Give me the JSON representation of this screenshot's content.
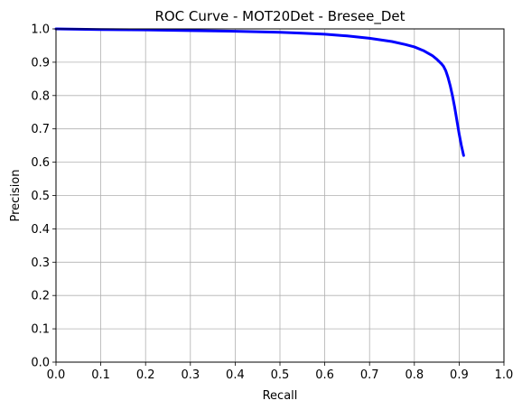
{
  "chart_data": {
    "type": "line",
    "title": "ROC Curve - MOT20Det - Bresee_Det",
    "xlabel": "Recall",
    "ylabel": "Precision",
    "xlim": [
      0.0,
      1.0
    ],
    "ylim": [
      0.0,
      1.0
    ],
    "xticks": [
      "0.0",
      "0.1",
      "0.2",
      "0.3",
      "0.4",
      "0.5",
      "0.6",
      "0.7",
      "0.8",
      "0.9",
      "1.0"
    ],
    "yticks": [
      "0.0",
      "0.1",
      "0.2",
      "0.3",
      "0.4",
      "0.5",
      "0.6",
      "0.7",
      "0.8",
      "0.9",
      "1.0"
    ],
    "grid": true,
    "series": [
      {
        "color": "#0000ff",
        "x": [
          0.0,
          0.05,
          0.1,
          0.2,
          0.3,
          0.4,
          0.5,
          0.55,
          0.6,
          0.65,
          0.7,
          0.75,
          0.78,
          0.8,
          0.82,
          0.84,
          0.85,
          0.86,
          0.865,
          0.87,
          0.875,
          0.88,
          0.885,
          0.89,
          0.895,
          0.9,
          0.905,
          0.91
        ],
        "y": [
          1.0,
          0.999,
          0.998,
          0.997,
          0.995,
          0.993,
          0.99,
          0.987,
          0.984,
          0.979,
          0.972,
          0.962,
          0.953,
          0.946,
          0.935,
          0.92,
          0.909,
          0.896,
          0.888,
          0.875,
          0.855,
          0.83,
          0.8,
          0.765,
          0.725,
          0.685,
          0.65,
          0.62
        ]
      }
    ]
  }
}
